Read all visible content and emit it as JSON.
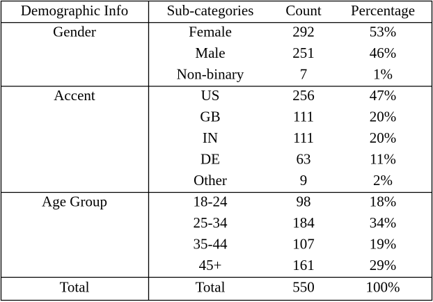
{
  "table": {
    "header": [
      "Demographic Info",
      "Sub-categories",
      "Count",
      "Percentage"
    ],
    "groups": [
      {
        "name": "Gender",
        "rows": [
          [
            "Female",
            "292",
            "53%"
          ],
          [
            "Male",
            "251",
            "46%"
          ],
          [
            "Non-binary",
            "7",
            "1%"
          ]
        ]
      },
      {
        "name": "Accent",
        "rows": [
          [
            "US",
            "256",
            "47%"
          ],
          [
            "GB",
            "111",
            "20%"
          ],
          [
            "IN",
            "111",
            "20%"
          ],
          [
            "DE",
            "63",
            "11%"
          ],
          [
            "Other",
            "9",
            "2%"
          ]
        ]
      },
      {
        "name": "Age Group",
        "rows": [
          [
            "18-24",
            "98",
            "18%"
          ],
          [
            "25-34",
            "184",
            "34%"
          ],
          [
            "35-44",
            "107",
            "19%"
          ],
          [
            "45+",
            "161",
            "29%"
          ]
        ]
      }
    ],
    "total": [
      "Total",
      "Total",
      "550",
      "100%"
    ]
  }
}
